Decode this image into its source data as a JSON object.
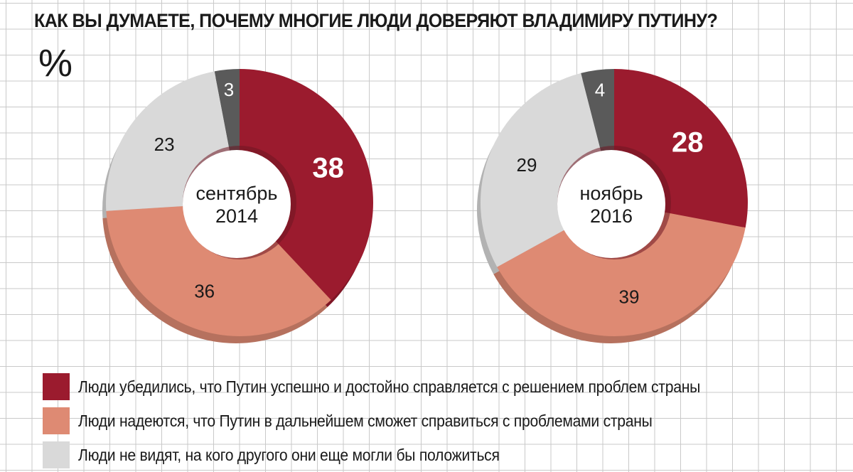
{
  "title": "КАК ВЫ ДУМАЕТЕ, ПОЧЕМУ МНОГИЕ ЛЮДИ ДОВЕРЯЮТ ВЛАДИМИРУ ПУТИНУ?",
  "unit": "%",
  "colors": {
    "convinced": "#9b1b2e",
    "hope": "#de8a73",
    "no_alternative": "#d9d9d9",
    "other": "#5a5a5a",
    "background": "#ffffff",
    "grid": "#c9c9c9"
  },
  "chart_data": [
    {
      "type": "pie",
      "center_label": [
        "сентябрь",
        "2014"
      ],
      "slices": [
        {
          "key": "convinced",
          "value": 38
        },
        {
          "key": "hope",
          "value": 36
        },
        {
          "key": "no_alternative",
          "value": 23
        },
        {
          "key": "other",
          "value": 3
        }
      ]
    },
    {
      "type": "pie",
      "center_label": [
        "ноябрь",
        "2016"
      ],
      "slices": [
        {
          "key": "convinced",
          "value": 28
        },
        {
          "key": "hope",
          "value": 39
        },
        {
          "key": "no_alternative",
          "value": 29
        },
        {
          "key": "other",
          "value": 4
        }
      ]
    }
  ],
  "legend": [
    {
      "key": "convinced",
      "label": "Люди убедились, что Путин успешно и достойно справляется с решением проблем страны"
    },
    {
      "key": "hope",
      "label": "Люди надеются, что Путин в дальнейшем сможет справиться с проблемами страны"
    },
    {
      "key": "no_alternative",
      "label": "Люди не видят, на кого другого они еще могли бы положиться"
    }
  ]
}
